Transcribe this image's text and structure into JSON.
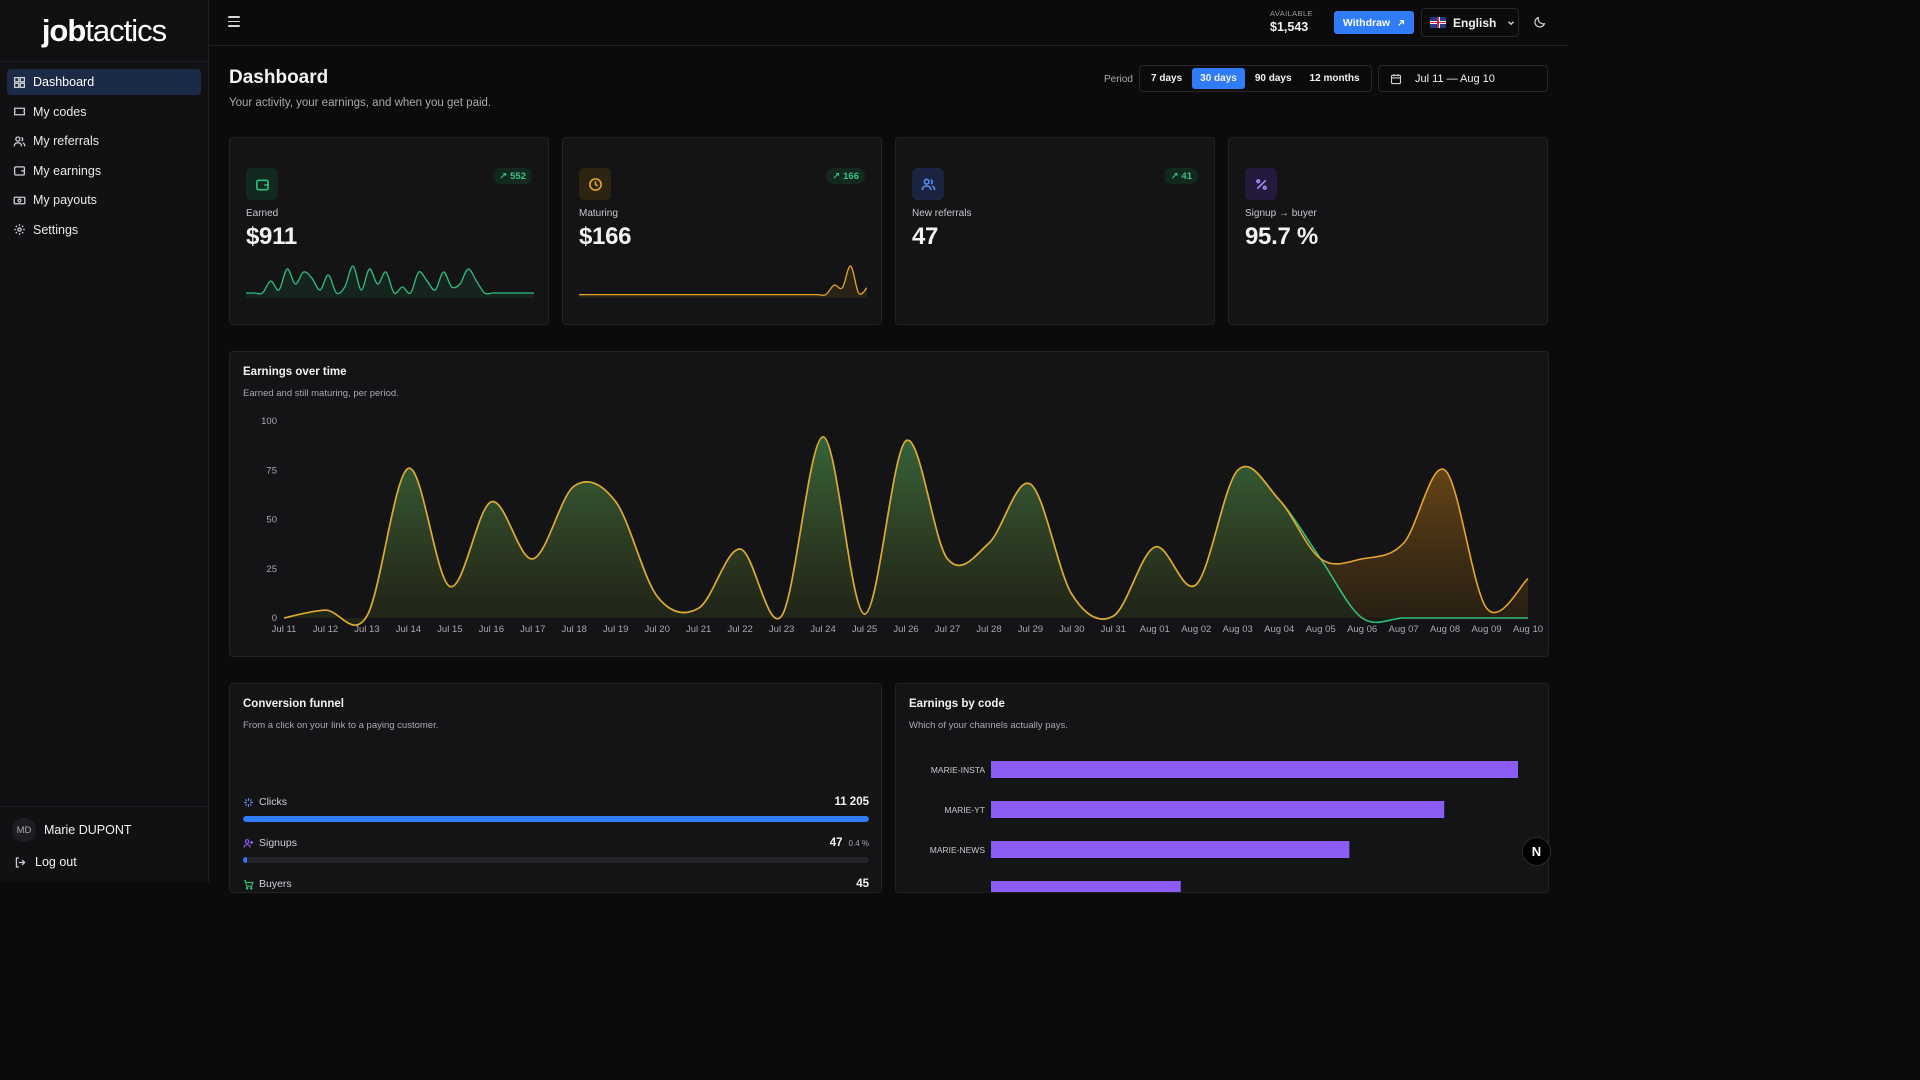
{
  "brand": {
    "bold": "job",
    "light": "tactics"
  },
  "sidebar": {
    "items": [
      {
        "label": "Dashboard",
        "icon": "dashboard-grid-icon",
        "active": true
      },
      {
        "label": "My codes",
        "icon": "ticket-icon"
      },
      {
        "label": "My referrals",
        "icon": "users-icon"
      },
      {
        "label": "My earnings",
        "icon": "wallet-icon"
      },
      {
        "label": "My payouts",
        "icon": "banknote-icon"
      },
      {
        "label": "Settings",
        "icon": "gear-icon"
      }
    ],
    "user": {
      "initials": "MD",
      "name": "Marie DUPONT"
    },
    "logout_label": "Log out"
  },
  "topbar": {
    "available_label": "AVAILABLE",
    "available_amount": "$1,543",
    "withdraw_label": "Withdraw",
    "language": "English"
  },
  "header": {
    "title": "Dashboard",
    "subtitle": "Your activity, your earnings, and when you get paid.",
    "period_label": "Period",
    "periods": [
      "7 days",
      "30 days",
      "90 days",
      "12 months"
    ],
    "active_period": "30 days",
    "date_range": "Jul 11 — Aug 10"
  },
  "kpis": [
    {
      "label": "Earned",
      "value": "$911",
      "delta": "552",
      "icon": "wallet-icon",
      "color": "#2fbf7a",
      "spark": [
        2,
        2,
        2,
        10,
        4,
        18,
        8,
        16,
        12,
        4,
        14,
        2,
        6,
        20,
        4,
        18,
        8,
        16,
        2,
        6,
        2,
        16,
        10,
        4,
        16,
        6,
        8,
        18,
        10,
        2,
        2,
        2,
        2,
        2,
        2,
        2
      ]
    },
    {
      "label": "Maturing",
      "value": "$166",
      "delta": "166",
      "icon": "clock-icon",
      "color": "#e8a52a",
      "spark": [
        1,
        1,
        1,
        1,
        1,
        1,
        1,
        1,
        1,
        1,
        1,
        1,
        1,
        1,
        1,
        1,
        1,
        1,
        1,
        1,
        1,
        1,
        1,
        1,
        1,
        1,
        1,
        1,
        1,
        1,
        1,
        8,
        6,
        22,
        2,
        6
      ]
    },
    {
      "label": "New referrals",
      "value": "47",
      "delta": "41",
      "icon": "users-icon",
      "color": "#5b8cf2"
    },
    {
      "label": "Signup → buyer",
      "value": "95.7 %",
      "icon": "percent-icon",
      "color": "#8b5cf6"
    }
  ],
  "earnings_chart": {
    "title": "Earnings over time",
    "subtitle": "Earned and still maturing, per period."
  },
  "chart_data": {
    "type": "area",
    "title": "Earnings over time",
    "categories": [
      "Jul 11",
      "Jul 12",
      "Jul 13",
      "Jul 14",
      "Jul 15",
      "Jul 16",
      "Jul 17",
      "Jul 18",
      "Jul 19",
      "Jul 20",
      "Jul 21",
      "Jul 22",
      "Jul 23",
      "Jul 24",
      "Jul 25",
      "Jul 26",
      "Jul 27",
      "Jul 28",
      "Jul 29",
      "Jul 30",
      "Jul 31",
      "Aug 01",
      "Aug 02",
      "Aug 03",
      "Aug 04",
      "Aug 05",
      "Aug 06",
      "Aug 07",
      "Aug 08",
      "Aug 09",
      "Aug 10"
    ],
    "series": [
      {
        "values": [
          0,
          4,
          1,
          76,
          16,
          59,
          30,
          67,
          59,
          11,
          5,
          35,
          1,
          92,
          2,
          90,
          30,
          38,
          68,
          12,
          1,
          36,
          17,
          75,
          60,
          30,
          0,
          0,
          0,
          0,
          0
        ]
      },
      {
        "values": [
          0,
          4,
          1,
          76,
          16,
          59,
          30,
          67,
          59,
          11,
          5,
          35,
          1,
          92,
          2,
          90,
          30,
          38,
          68,
          12,
          1,
          36,
          17,
          75,
          60,
          30,
          30,
          38,
          75,
          5,
          20
        ]
      }
    ],
    "ylim": [
      0,
      100
    ],
    "yticks": [
      0,
      25,
      50,
      75,
      100
    ],
    "grid": false,
    "colors": {
      "earned": "#2fbf7a",
      "maturing": "#e8a52a"
    }
  },
  "funnel": {
    "title": "Conversion funnel",
    "subtitle": "From a click on your link to a paying customer.",
    "rows": [
      {
        "label": "Clicks",
        "value": "11 205",
        "pct": "",
        "fill": 1.0,
        "icon": "sparkle-icon"
      },
      {
        "label": "Signups",
        "value": "47",
        "pct": "0.4 %",
        "fill": 0.004,
        "icon": "user-plus-icon"
      },
      {
        "label": "Buyers",
        "value": "45",
        "pct": "",
        "fill": 0.004,
        "icon": "cart-icon"
      }
    ]
  },
  "by_code": {
    "title": "Earnings by code",
    "subtitle": "Which of your channels actually pays.",
    "codes": [
      "MARIE-INSTA",
      "MARIE-YT",
      "MARIE-NEWS",
      ""
    ],
    "values": [
      100,
      86,
      68,
      36
    ],
    "color": "#8b5cf6"
  },
  "floating_badge": "N"
}
